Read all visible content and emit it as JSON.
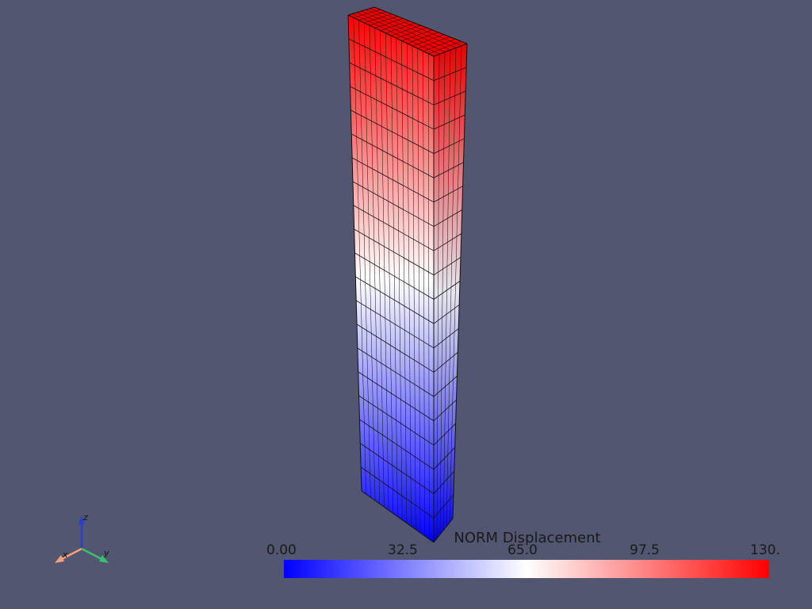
{
  "viewport": {
    "background": "#525670",
    "object": "mesh-column",
    "colormap": [
      "#0000ff",
      "#ffffff",
      "#ff0000"
    ]
  },
  "scalar_bar": {
    "title": "NORM Displacement",
    "min_label": "0.00",
    "ticks": [
      "0.00",
      "32.5",
      "65.0",
      "97.5",
      "130."
    ]
  },
  "axes": {
    "x_label": "x",
    "y_label": "y",
    "z_label": "z",
    "x_color": "#f4a07a",
    "y_color": "#3cc070",
    "z_color": "#2b3bd6"
  }
}
